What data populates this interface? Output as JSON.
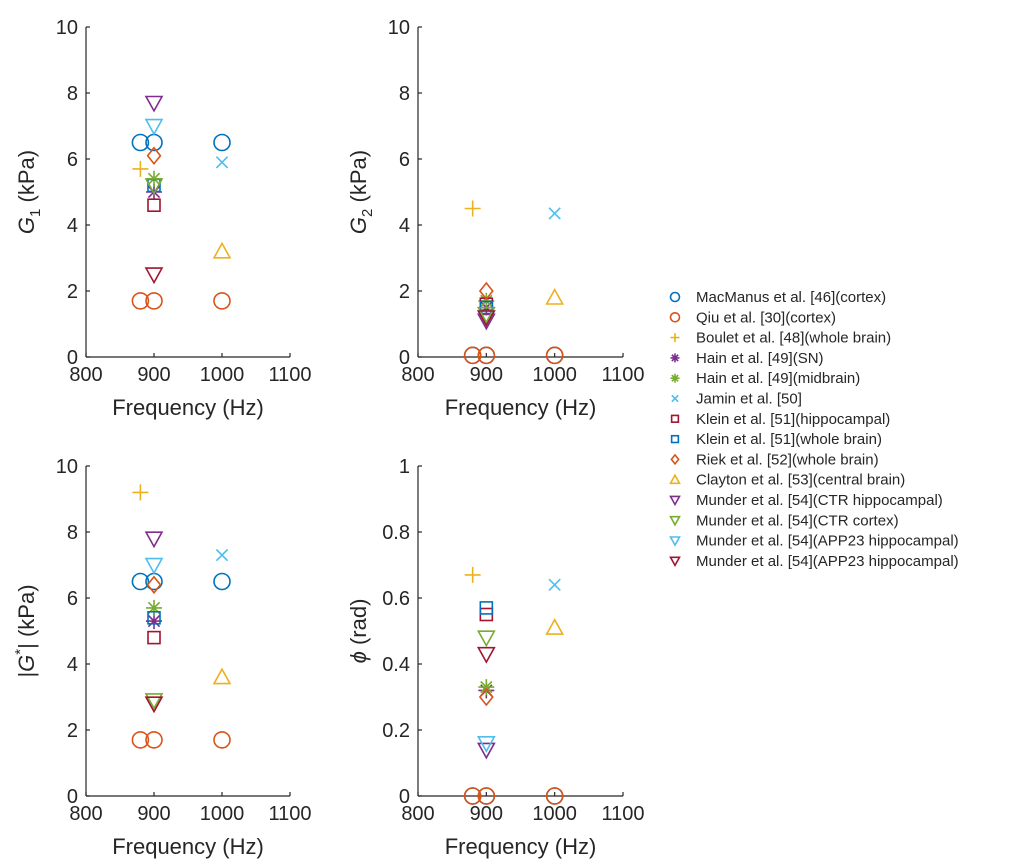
{
  "series_styles": [
    {
      "name": "MacManus et al. [46](cortex)",
      "marker": "circle",
      "color": "#0072bd"
    },
    {
      "name": "Qiu et al. [30](cortex)",
      "marker": "circle",
      "color": "#d95319"
    },
    {
      "name": "Boulet et al. [48](whole brain)",
      "marker": "plus",
      "color": "#edb120"
    },
    {
      "name": "Hain et al. [49](SN)",
      "marker": "asterisk",
      "color": "#7e2f8e"
    },
    {
      "name": "Hain et al. [49](midbrain)",
      "marker": "asterisk",
      "color": "#77ac30"
    },
    {
      "name": "Jamin et al. [50]",
      "marker": "x",
      "color": "#4dbeee"
    },
    {
      "name": "Klein et al. [51](hippocampal)",
      "marker": "square",
      "color": "#a2142f"
    },
    {
      "name": "Klein et al. [51](whole brain)",
      "marker": "square",
      "color": "#0072bd"
    },
    {
      "name": "Riek et al. [52](whole brain)",
      "marker": "diamond",
      "color": "#d95319"
    },
    {
      "name": "Clayton et al. [53](central brain)",
      "marker": "triangle-up",
      "color": "#edb120"
    },
    {
      "name": "Munder et al. [54](CTR hippocampal)",
      "marker": "triangle-down",
      "color": "#7e2f8e"
    },
    {
      "name": "Munder et al. [54](CTR cortex)",
      "marker": "triangle-down",
      "color": "#77ac30"
    },
    {
      "name": "Munder et al. [54](APP23 hippocampal)",
      "marker": "triangle-down",
      "color": "#4dbeee"
    },
    {
      "name": "Munder et al. [54](APP23 hippocampal)",
      "marker": "triangle-down",
      "color": "#a2142f"
    }
  ],
  "chart_data": [
    {
      "type": "scatter",
      "ylabel_main": "G",
      "ylabel_sub": "1",
      "ylabel_unit": " (kPa)",
      "xlabel": "Frequency (Hz)",
      "xlim": [
        800,
        1100
      ],
      "ylim": [
        0,
        10
      ],
      "xticks": [
        "800",
        "900",
        "1000",
        "1100"
      ],
      "yticks": [
        "0",
        "2",
        "4",
        "6",
        "8",
        "10"
      ],
      "series": [
        {
          "series_index": 0,
          "x": [
            880,
            900,
            1000
          ],
          "y": [
            6.5,
            6.5,
            6.5
          ]
        },
        {
          "series_index": 1,
          "x": [
            880,
            900,
            1000
          ],
          "y": [
            1.7,
            1.7,
            1.7
          ]
        },
        {
          "series_index": 2,
          "x": [
            880
          ],
          "y": [
            5.7
          ]
        },
        {
          "series_index": 3,
          "x": [
            900
          ],
          "y": [
            5.0
          ]
        },
        {
          "series_index": 4,
          "x": [
            900
          ],
          "y": [
            5.4
          ]
        },
        {
          "series_index": 5,
          "x": [
            1000
          ],
          "y": [
            5.9
          ]
        },
        {
          "series_index": 6,
          "x": [
            900
          ],
          "y": [
            4.6
          ]
        },
        {
          "series_index": 7,
          "x": [
            900
          ],
          "y": [
            5.2
          ]
        },
        {
          "series_index": 8,
          "x": [
            900
          ],
          "y": [
            6.1
          ]
        },
        {
          "series_index": 9,
          "x": [
            1000
          ],
          "y": [
            3.2
          ]
        },
        {
          "series_index": 10,
          "x": [
            900
          ],
          "y": [
            7.7
          ]
        },
        {
          "series_index": 11,
          "x": [
            900
          ],
          "y": [
            5.2
          ]
        },
        {
          "series_index": 12,
          "x": [
            900
          ],
          "y": [
            7.0
          ]
        },
        {
          "series_index": 13,
          "x": [
            900
          ],
          "y": [
            2.5
          ]
        }
      ]
    },
    {
      "type": "scatter",
      "ylabel_main": "G",
      "ylabel_sub": "2",
      "ylabel_unit": " (kPa)",
      "xlabel": "Frequency (Hz)",
      "xlim": [
        800,
        1100
      ],
      "ylim": [
        0,
        10
      ],
      "xticks": [
        "800",
        "900",
        "1000",
        "1100"
      ],
      "yticks": [
        "0",
        "2",
        "4",
        "6",
        "8",
        "10"
      ],
      "series": [
        {
          "series_index": 0,
          "x": [
            880,
            900,
            1000
          ],
          "y": [
            0.05,
            0.05,
            0.05
          ]
        },
        {
          "series_index": 1,
          "x": [
            880,
            900,
            1000
          ],
          "y": [
            0.05,
            0.05,
            0.05
          ]
        },
        {
          "series_index": 2,
          "x": [
            880
          ],
          "y": [
            4.5
          ]
        },
        {
          "series_index": 3,
          "x": [
            900
          ],
          "y": [
            1.5
          ]
        },
        {
          "series_index": 4,
          "x": [
            900
          ],
          "y": [
            1.7
          ]
        },
        {
          "series_index": 5,
          "x": [
            1000
          ],
          "y": [
            4.35
          ]
        },
        {
          "series_index": 6,
          "x": [
            900
          ],
          "y": [
            1.6
          ]
        },
        {
          "series_index": 7,
          "x": [
            900
          ],
          "y": [
            1.5
          ]
        },
        {
          "series_index": 8,
          "x": [
            900
          ],
          "y": [
            2.0
          ]
        },
        {
          "series_index": 9,
          "x": [
            1000
          ],
          "y": [
            1.8
          ]
        },
        {
          "series_index": 10,
          "x": [
            900
          ],
          "y": [
            1.1
          ]
        },
        {
          "series_index": 11,
          "x": [
            900
          ],
          "y": [
            1.3
          ]
        },
        {
          "series_index": 12,
          "x": [
            900
          ],
          "y": [
            1.2
          ]
        },
        {
          "series_index": 13,
          "x": [
            900
          ],
          "y": [
            1.2
          ]
        }
      ]
    },
    {
      "type": "scatter",
      "ylabel_main": "|G",
      "ylabel_sup": "*",
      "ylabel_tail": "| (kPa)",
      "xlabel": "Frequency (Hz)",
      "xlim": [
        800,
        1100
      ],
      "ylim": [
        0,
        10
      ],
      "xticks": [
        "800",
        "900",
        "1000",
        "1100"
      ],
      "yticks": [
        "0",
        "2",
        "4",
        "6",
        "8",
        "10"
      ],
      "series": [
        {
          "series_index": 0,
          "x": [
            880,
            900,
            1000
          ],
          "y": [
            6.5,
            6.5,
            6.5
          ]
        },
        {
          "series_index": 1,
          "x": [
            880,
            900,
            1000
          ],
          "y": [
            1.7,
            1.7,
            1.7
          ]
        },
        {
          "series_index": 2,
          "x": [
            880
          ],
          "y": [
            9.2
          ]
        },
        {
          "series_index": 3,
          "x": [
            900
          ],
          "y": [
            5.3
          ]
        },
        {
          "series_index": 4,
          "x": [
            900
          ],
          "y": [
            5.7
          ]
        },
        {
          "series_index": 5,
          "x": [
            1000
          ],
          "y": [
            7.3
          ]
        },
        {
          "series_index": 6,
          "x": [
            900
          ],
          "y": [
            4.8
          ]
        },
        {
          "series_index": 7,
          "x": [
            900
          ],
          "y": [
            5.4
          ]
        },
        {
          "series_index": 8,
          "x": [
            900
          ],
          "y": [
            6.4
          ]
        },
        {
          "series_index": 9,
          "x": [
            1000
          ],
          "y": [
            3.6
          ]
        },
        {
          "series_index": 10,
          "x": [
            900
          ],
          "y": [
            7.8
          ]
        },
        {
          "series_index": 11,
          "x": [
            900
          ],
          "y": [
            2.9
          ]
        },
        {
          "series_index": 12,
          "x": [
            900
          ],
          "y": [
            7.0
          ]
        },
        {
          "series_index": 13,
          "x": [
            900
          ],
          "y": [
            2.8
          ]
        }
      ]
    },
    {
      "type": "scatter",
      "ylabel_main": "ϕ (rad)",
      "xlabel": "Frequency (Hz)",
      "xlim": [
        800,
        1100
      ],
      "ylim": [
        0,
        1
      ],
      "xticks": [
        "800",
        "900",
        "1000",
        "1100"
      ],
      "yticks": [
        "0",
        "0.2",
        "0.4",
        "0.6",
        "0.8",
        "1"
      ],
      "series": [
        {
          "series_index": 0,
          "x": [
            880,
            900,
            1000
          ],
          "y": [
            0.0,
            0.0,
            0.0
          ]
        },
        {
          "series_index": 1,
          "x": [
            880,
            900,
            1000
          ],
          "y": [
            0.0,
            0.0,
            0.0
          ]
        },
        {
          "series_index": 2,
          "x": [
            880
          ],
          "y": [
            0.67
          ]
        },
        {
          "series_index": 3,
          "x": [
            900
          ],
          "y": [
            0.32
          ]
        },
        {
          "series_index": 4,
          "x": [
            900
          ],
          "y": [
            0.33
          ]
        },
        {
          "series_index": 5,
          "x": [
            1000
          ],
          "y": [
            0.64
          ]
        },
        {
          "series_index": 6,
          "x": [
            900
          ],
          "y": [
            0.55
          ]
        },
        {
          "series_index": 7,
          "x": [
            900
          ],
          "y": [
            0.57
          ]
        },
        {
          "series_index": 8,
          "x": [
            900
          ],
          "y": [
            0.3
          ]
        },
        {
          "series_index": 9,
          "x": [
            1000
          ],
          "y": [
            0.51
          ]
        },
        {
          "series_index": 10,
          "x": [
            900
          ],
          "y": [
            0.14
          ]
        },
        {
          "series_index": 11,
          "x": [
            900
          ],
          "y": [
            0.48
          ]
        },
        {
          "series_index": 12,
          "x": [
            900
          ],
          "y": [
            0.16
          ]
        },
        {
          "series_index": 13,
          "x": [
            900
          ],
          "y": [
            0.43
          ]
        }
      ]
    }
  ]
}
